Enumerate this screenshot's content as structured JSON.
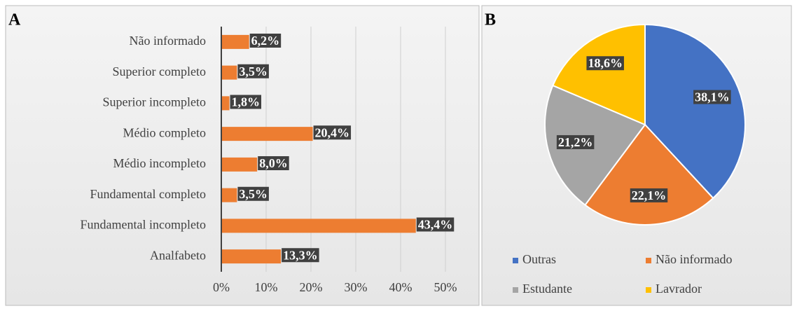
{
  "chart_data": [
    {
      "type": "bar",
      "orientation": "horizontal",
      "title": "A",
      "categories": [
        "Não informado",
        "Superior completo",
        "Superior incompleto",
        "Médio completo",
        "Médio incompleto",
        "Fundamental completo",
        "Fundamental incompleto",
        "Analfabeto"
      ],
      "values": [
        6.2,
        3.5,
        1.8,
        20.4,
        8.0,
        3.5,
        43.4,
        13.3
      ],
      "value_labels": [
        "6,2%",
        "3,5%",
        "1,8%",
        "20,4%",
        "8,0%",
        "3,5%",
        "43,4%",
        "13,3%"
      ],
      "color": "#ed7d31",
      "xlim": [
        0,
        50
      ],
      "xticks": [
        {
          "value": 0,
          "label": "0%"
        },
        {
          "value": 10,
          "label": "10%"
        },
        {
          "value": 20,
          "label": "20%"
        },
        {
          "value": 30,
          "label": "30%"
        },
        {
          "value": 40,
          "label": "40%"
        },
        {
          "value": 50,
          "label": "50%"
        }
      ],
      "grid": true
    },
    {
      "type": "pie",
      "title": "B",
      "categories": [
        "Outras",
        "Não informado",
        "Estudante",
        "Lavrador"
      ],
      "values": [
        38.1,
        22.1,
        21.2,
        18.6
      ],
      "value_labels": [
        "38,1%",
        "22,1%",
        "21,2%",
        "18,6%"
      ],
      "colors": [
        "#4472c4",
        "#ed7d31",
        "#a5a5a5",
        "#ffc000"
      ],
      "legend": "bottom"
    }
  ]
}
